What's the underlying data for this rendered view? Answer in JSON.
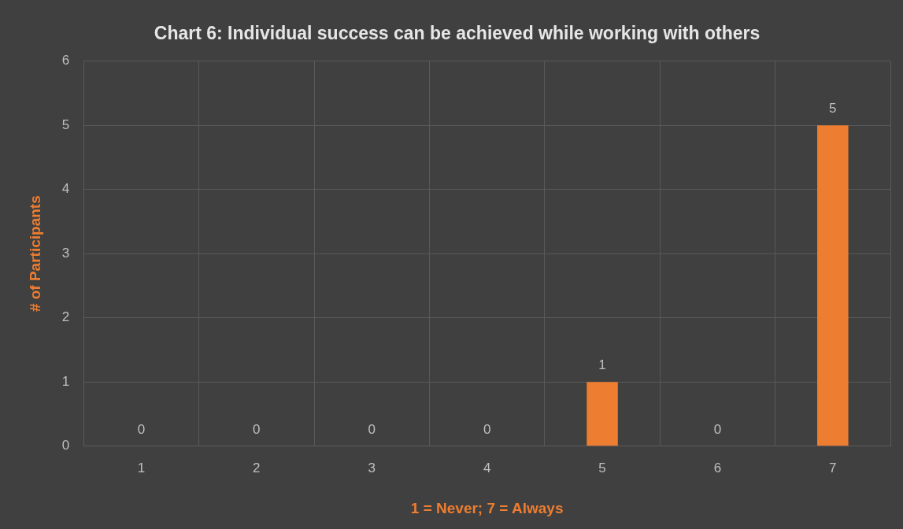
{
  "chart_data": {
    "type": "bar",
    "title": "Chart 6: Individual success can be achieved while working with others",
    "xlabel": "1 = Never; 7 = Always",
    "ylabel": "# of Participants",
    "categories": [
      "1",
      "2",
      "3",
      "4",
      "5",
      "6",
      "7"
    ],
    "values": [
      0,
      0,
      0,
      0,
      1,
      0,
      5
    ],
    "color": "#ed7d31",
    "ylim": [
      0,
      6
    ],
    "yticks": [
      0,
      1,
      2,
      3,
      4,
      5,
      6
    ],
    "grid": true,
    "data_labels": true
  }
}
